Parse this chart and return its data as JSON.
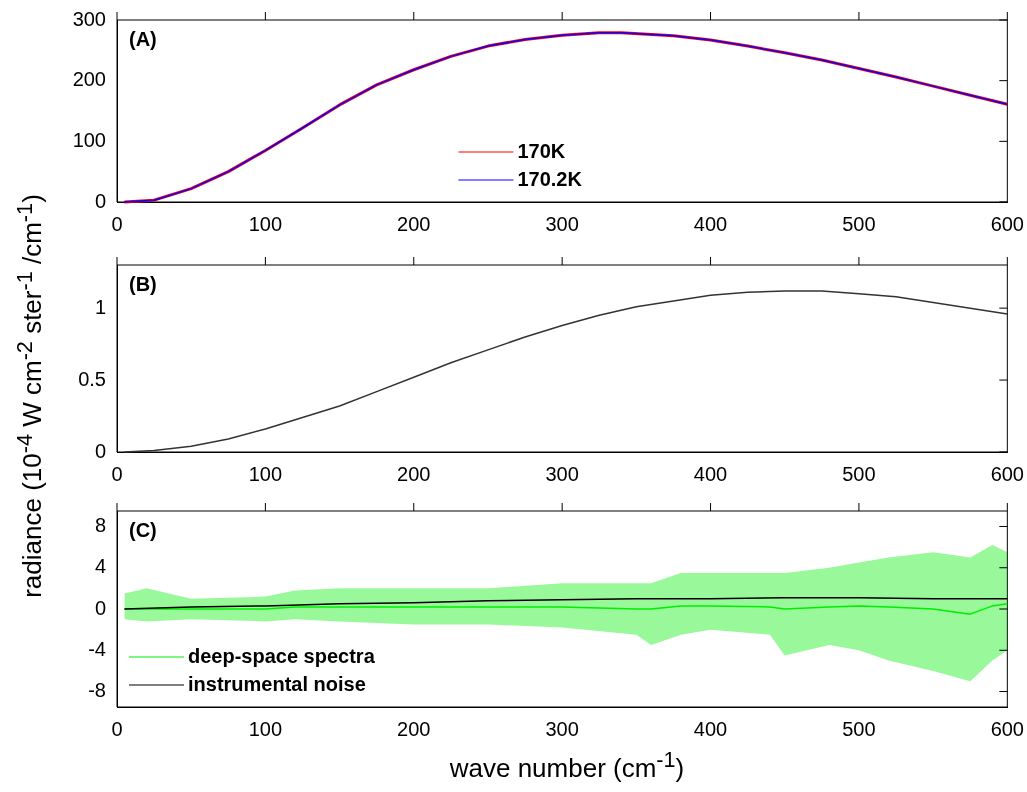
{
  "chart_data": [
    {
      "type": "line",
      "title": "(A)",
      "x": [
        5,
        25,
        50,
        75,
        100,
        125,
        150,
        175,
        200,
        225,
        250,
        275,
        300,
        325,
        340,
        375,
        400,
        425,
        450,
        475,
        500,
        525,
        550,
        575,
        600
      ],
      "series": [
        {
          "name": "170K",
          "color": "#ff0000",
          "values": [
            0,
            3,
            22,
            50,
            85,
            122,
            160,
            193,
            218,
            240,
            257,
            268,
            275,
            279,
            279,
            274,
            267,
            257,
            246,
            234,
            220,
            206,
            191,
            176,
            161
          ]
        },
        {
          "name": "170.2K",
          "color": "#0000ff",
          "values": [
            0,
            3,
            22,
            50,
            85,
            122,
            160,
            193,
            218,
            240,
            257,
            268,
            275,
            279,
            279,
            274,
            267,
            257,
            246,
            234,
            220,
            206,
            191,
            176,
            161
          ]
        }
      ],
      "xlim": [
        0,
        600
      ],
      "xticks": [
        0,
        100,
        200,
        300,
        400,
        500,
        600
      ],
      "ylim": [
        0,
        300
      ],
      "yticks": [
        0,
        100,
        200,
        300
      ],
      "legend": "bottom"
    },
    {
      "type": "line",
      "title": "(B)",
      "ylabel": "radiance  (10$^{-4}$ W cm$^{-2}$ ster$^{-1}$ /cm$^{-1}$)",
      "x": [
        5,
        25,
        50,
        75,
        100,
        125,
        150,
        175,
        200,
        225,
        250,
        275,
        300,
        325,
        350,
        375,
        400,
        425,
        450,
        475,
        500,
        525,
        550,
        575,
        600
      ],
      "series": [
        {
          "color": "#333333",
          "values": [
            0,
            0.01,
            0.04,
            0.09,
            0.16,
            0.24,
            0.32,
            0.42,
            0.52,
            0.62,
            0.71,
            0.8,
            0.88,
            0.95,
            1.01,
            1.05,
            1.09,
            1.11,
            1.12,
            1.12,
            1.1,
            1.08,
            1.04,
            1.0,
            0.96
          ]
        }
      ],
      "xlim": [
        0,
        600
      ],
      "xticks": [
        0,
        100,
        200,
        300,
        400,
        500,
        600
      ],
      "ylim": [
        0,
        1.3
      ],
      "yticks": [
        0,
        0.5,
        1
      ]
    },
    {
      "type": "line",
      "title": "(C)",
      "xlabel": "wave number (cm$^{-1}$)",
      "series": [
        {
          "name": "deep-space spectra",
          "color": "#00ee00",
          "x": [
            5,
            20,
            50,
            100,
            120,
            150,
            200,
            250,
            300,
            350,
            360,
            380,
            400,
            440,
            450,
            480,
            500,
            520,
            550,
            575,
            590,
            600
          ],
          "values": [
            0,
            0,
            0,
            0,
            0.2,
            0.2,
            0.2,
            0.2,
            0.2,
            0,
            0,
            0.3,
            0.3,
            0.2,
            0,
            0.2,
            0.3,
            0.2,
            0,
            -0.5,
            0.3,
            0.5
          ],
          "lower": [
            -1,
            -1.2,
            -1,
            -1.2,
            -1,
            -1.2,
            -1.5,
            -1.5,
            -1.8,
            -2.5,
            -3.5,
            -2.5,
            -2,
            -2.5,
            -4.5,
            -3.5,
            -4,
            -5,
            -6,
            -7,
            -5,
            -4
          ],
          "upper": [
            1.5,
            2,
            1,
            1.2,
            1.8,
            2,
            2,
            2,
            2.5,
            2.5,
            2.5,
            3.5,
            3.5,
            3.5,
            3.5,
            4,
            4.5,
            5,
            5.5,
            5,
            6.2,
            5.5
          ]
        },
        {
          "name": "instrumental noise",
          "color": "#000000",
          "x": [
            5,
            50,
            100,
            150,
            200,
            250,
            300,
            350,
            400,
            450,
            500,
            550,
            600
          ],
          "values": [
            0,
            0.2,
            0.3,
            0.5,
            0.6,
            0.8,
            0.9,
            1,
            1,
            1.1,
            1.1,
            1,
            1
          ]
        }
      ],
      "xlim": [
        0,
        600
      ],
      "xticks": [
        0,
        100,
        200,
        300,
        400,
        500,
        600
      ],
      "ylim": [
        -9.5,
        9.5
      ],
      "yticks": [
        -8,
        -4,
        0,
        4,
        8
      ],
      "legend": "bottom left"
    }
  ]
}
